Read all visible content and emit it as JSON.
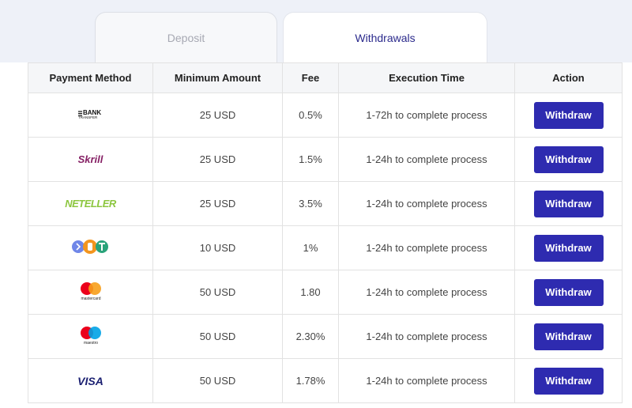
{
  "tabs": [
    "Deposit",
    "Withdrawals"
  ],
  "table": {
    "headers": [
      "Payment Method",
      "Minimum Amount",
      "Fee",
      "Execution Time",
      "Action"
    ],
    "rows": [
      {
        "logo": [
          "BANK",
          "TRANSFER"
        ],
        "cells": [
          "25 USD",
          "0.5%",
          "1-72h to complete process",
          "Withdraw"
        ]
      },
      {
        "logo": [
          "Skrill"
        ],
        "cells": [
          "25 USD",
          "1.5%",
          "1-24h to complete process",
          "Withdraw"
        ]
      },
      {
        "logo": [
          "NETELLER"
        ],
        "cells": [
          "25 USD",
          "3.5%",
          "1-24h to complete process",
          "Withdraw"
        ]
      },
      {
        "cells": [
          "10 USD",
          "1%",
          "1-24h to complete process",
          "Withdraw"
        ]
      },
      {
        "logo": [
          "mastercard"
        ],
        "cells": [
          "50 USD",
          "1.80",
          "1-24h to complete process",
          "Withdraw"
        ]
      },
      {
        "logo": [
          "maestro"
        ],
        "cells": [
          "50 USD",
          "2.30%",
          "1-24h to complete process",
          "Withdraw"
        ]
      },
      {
        "logo": [
          "VISA"
        ],
        "cells": [
          "50 USD",
          "1.78%",
          "1-24h to complete process",
          "Withdraw"
        ]
      }
    ]
  }
}
